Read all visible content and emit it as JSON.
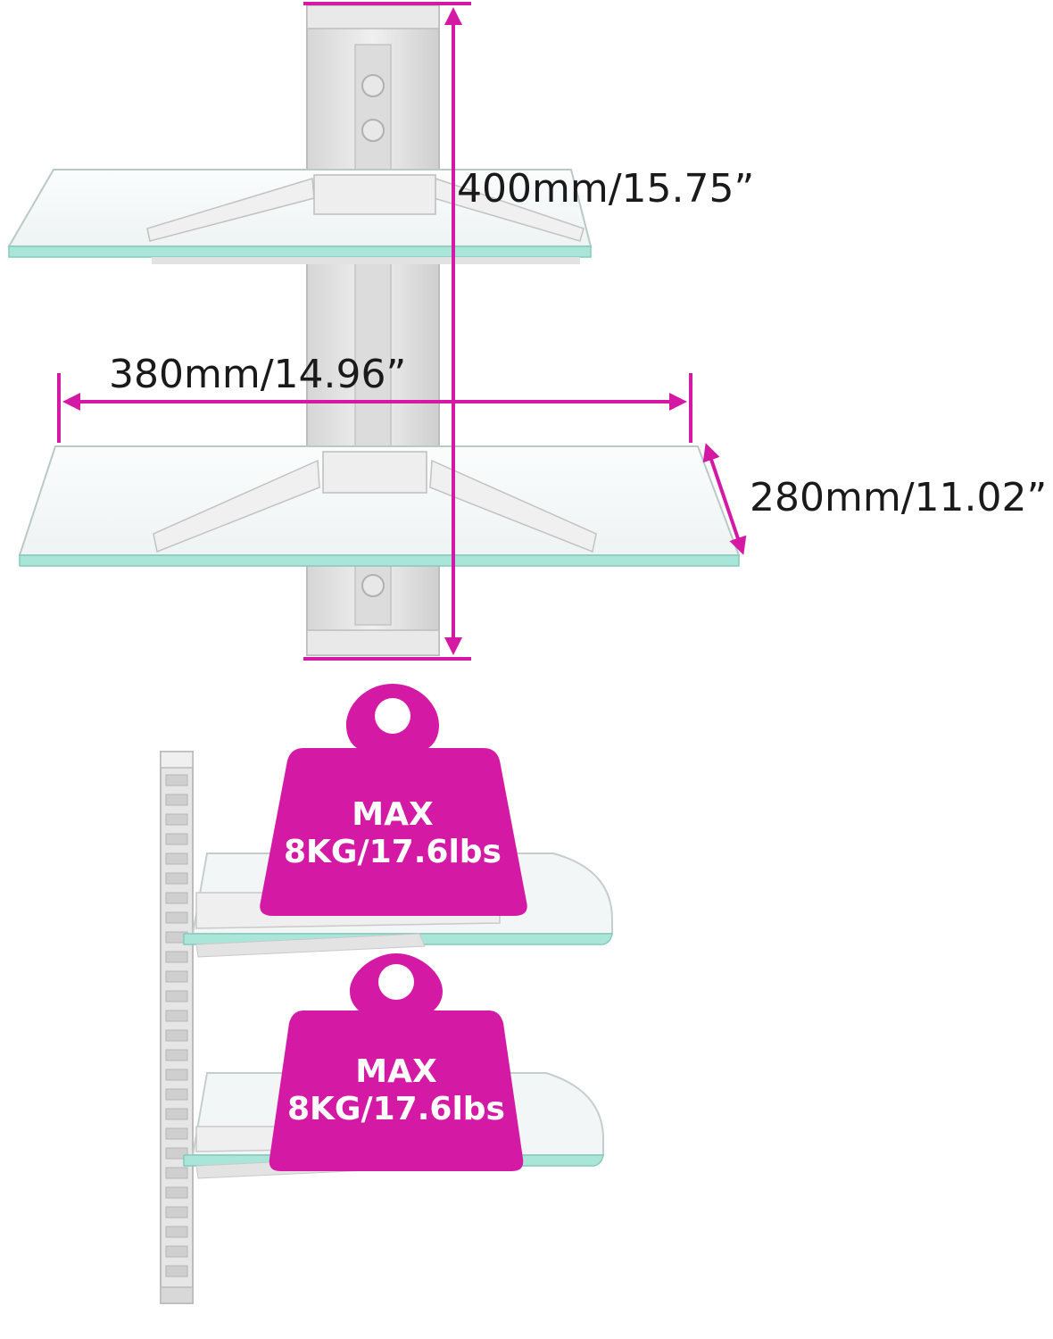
{
  "dimensions": {
    "height_label": "400mm/15.75”",
    "width_label": "380mm/14.96”",
    "depth_label": "280mm/11.02”"
  },
  "load_tags": [
    {
      "line1": "MAX",
      "line2": "8KG/17.6lbs"
    },
    {
      "line1": "MAX",
      "line2": "8KG/17.6lbs"
    }
  ],
  "colors": {
    "accent": "#d41aa5",
    "glass_edge": "#9fe3d6",
    "glass_fill": "#f4f7f7",
    "pole": "#e4e4e4"
  }
}
